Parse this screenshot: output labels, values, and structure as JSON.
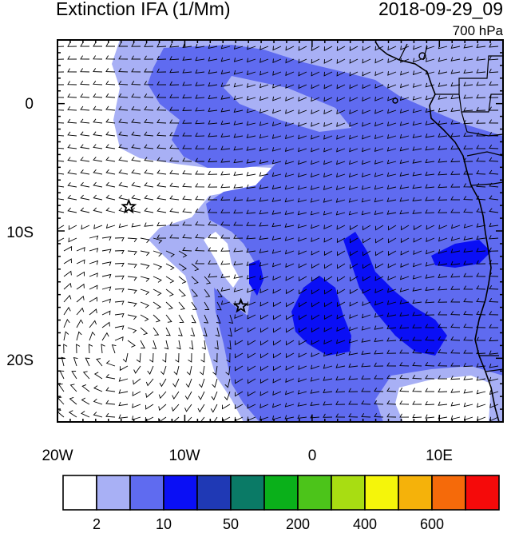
{
  "header": {
    "title": "Extinction IFA (1/Mm)",
    "datetime": "2018-09-29_09",
    "level": "700 hPa"
  },
  "axes": {
    "x_ticks": [
      {
        "lon": -20,
        "label": "20W"
      },
      {
        "lon": -10,
        "label": "10W"
      },
      {
        "lon": 0,
        "label": "0"
      },
      {
        "lon": 10,
        "label": "10E"
      }
    ],
    "y_ticks": [
      {
        "lat": 0,
        "label": "0"
      },
      {
        "lat": -10,
        "label": "10S"
      },
      {
        "lat": -20,
        "label": "20S"
      }
    ],
    "lon_range": [
      -20,
      15
    ],
    "lat_range": [
      -25,
      5
    ]
  },
  "colorbar": {
    "colors": [
      "#ffffff",
      "#a8b0f5",
      "#5f6bf0",
      "#0a0ff5",
      "#1f39b5",
      "#0a7a66",
      "#0ab01a",
      "#4cc41a",
      "#a8dd12",
      "#f5f50a",
      "#f5b20a",
      "#f56a0a",
      "#f50a0a"
    ],
    "labels": [
      {
        "index": 1,
        "text": "2"
      },
      {
        "index": 3,
        "text": "10"
      },
      {
        "index": 5,
        "text": "50"
      },
      {
        "index": 7,
        "text": "200"
      },
      {
        "index": 9,
        "text": "400"
      },
      {
        "index": 11,
        "text": "600"
      }
    ]
  },
  "markers": [
    {
      "name": "star",
      "lon": -14.4,
      "lat": -8.1
    },
    {
      "name": "star",
      "lon": -5.6,
      "lat": -15.9
    }
  ]
}
